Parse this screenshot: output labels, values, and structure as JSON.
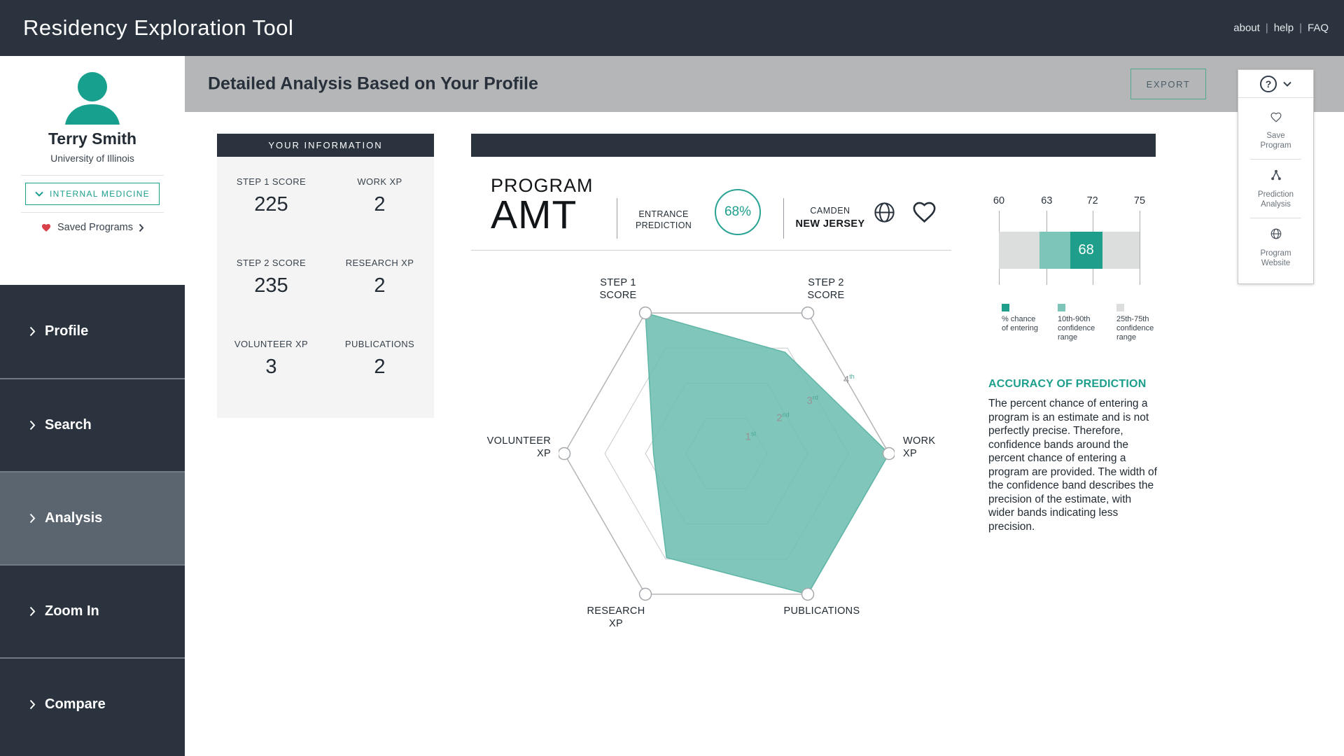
{
  "topbar": {
    "title": "Residency Exploration Tool",
    "links": [
      "about",
      "help",
      "FAQ"
    ],
    "separator": "|"
  },
  "sidebar": {
    "user": {
      "name": "Terry Smith",
      "school": "University of Illinois"
    },
    "specialty": "INTERNAL MEDICINE",
    "saved_programs_label": "Saved Programs",
    "nav": [
      {
        "label": "Profile",
        "active": false
      },
      {
        "label": "Search",
        "active": false
      },
      {
        "label": "Analysis",
        "active": true
      },
      {
        "label": "Zoom In",
        "active": false
      },
      {
        "label": "Compare",
        "active": false
      }
    ]
  },
  "header": {
    "title": "Detailed Analysis Based on Your Profile",
    "export_label": "EXPORT",
    "help_toggle": "?"
  },
  "help_menu": {
    "items": [
      {
        "icon": "heart-icon",
        "label": "Save\nProgram"
      },
      {
        "icon": "prediction-analysis-icon",
        "label": "Prediction\nAnalysis"
      },
      {
        "icon": "globe-icon",
        "label": "Program\nWebsite"
      }
    ]
  },
  "your_information": {
    "title": "YOUR INFORMATION",
    "fields": [
      {
        "label": "STEP 1 SCORE",
        "value": "225"
      },
      {
        "label": "WORK XP",
        "value": "2"
      },
      {
        "label": "STEP 2 SCORE",
        "value": "235"
      },
      {
        "label": "RESEARCH XP",
        "value": "2"
      },
      {
        "label": "VOLUNTEER XP",
        "value": "3"
      },
      {
        "label": "PUBLICATIONS",
        "value": "2"
      }
    ]
  },
  "program": {
    "eyebrow": "PROGRAM",
    "name": "AMT",
    "entrance_prediction_label": "ENTRANCE\nPREDICTION",
    "entrance_prediction_value": "68%",
    "city": "CAMDEN",
    "state": "NEW JERSEY"
  },
  "accuracy": {
    "title": "ACCURACY OF PREDICTION",
    "body": "The percent chance of entering a program is an estimate and is not perfectly precise. Therefore, confidence bands around the percent chance of entering a program are provided. The width of the confidence band describes the precision of the estimate, with wider bands indicating less precision."
  },
  "chart_data": [
    {
      "type": "radar",
      "title": "Applicant profile radar (hexagon, rings 1st-4th)",
      "axes": [
        {
          "name": "STEP 1 SCORE",
          "lines": [
            "STEP 1",
            "SCORE"
          ],
          "value_fraction": 1.0
        },
        {
          "name": "STEP 2 SCORE",
          "lines": [
            "STEP 2",
            "SCORE"
          ],
          "value_fraction": 0.72
        },
        {
          "name": "WORK XP",
          "lines": [
            "WORK",
            "XP"
          ],
          "value_fraction": 1.0
        },
        {
          "name": "PUBLICATIONS",
          "lines": [
            "PUBLICATIONS"
          ],
          "value_fraction": 1.0
        },
        {
          "name": "RESEARCH XP",
          "lines": [
            "RESEARCH",
            "XP"
          ],
          "value_fraction": 0.74
        },
        {
          "name": "VOLUNTEER XP",
          "lines": [
            "VOLUNTEER",
            "XP"
          ],
          "value_fraction": 0.45
        }
      ],
      "rings": [
        {
          "num": "1",
          "sup": "st"
        },
        {
          "num": "2",
          "sup": "nd"
        },
        {
          "num": "3",
          "sup": "rd"
        },
        {
          "num": "4",
          "sup": "th"
        }
      ],
      "fill_color": "#6ebeb1",
      "grid": true,
      "legend_position": "none"
    },
    {
      "type": "confidence_band",
      "ticks": [
        "60",
        "63",
        "72",
        "75"
      ],
      "point_estimate": "68",
      "band_10_90": [
        63,
        72
      ],
      "track_range": [
        60,
        75
      ],
      "colors": {
        "point": "#1f9e8b",
        "band_10_90": "#7cc5b8",
        "track": "#dcdddd"
      },
      "legend": [
        {
          "color": "#1f9e8b",
          "label": "% chance\nof entering"
        },
        {
          "color": "#7cc5b8",
          "label": "10th-90th\nconfidence\nrange"
        },
        {
          "color": "#dcdddd",
          "label": "25th-75th\nconfidence\nrange"
        }
      ]
    }
  ]
}
